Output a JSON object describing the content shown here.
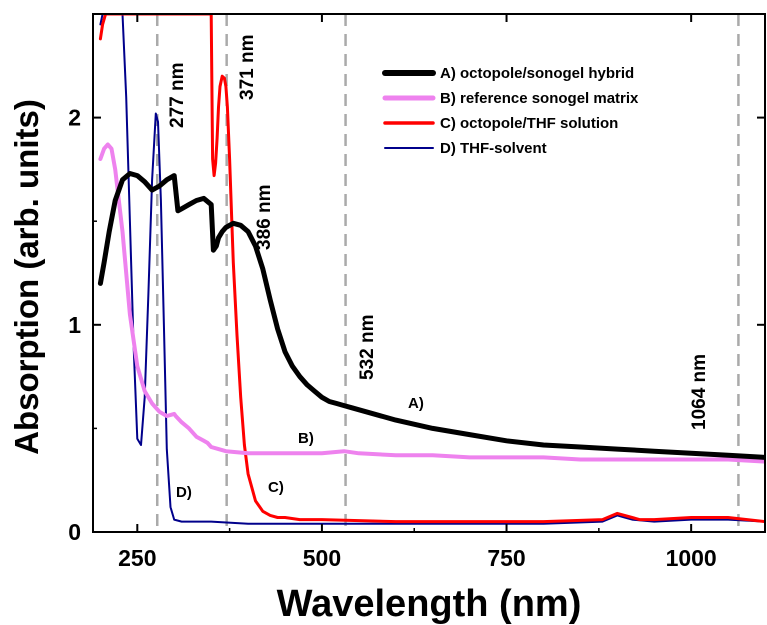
{
  "chart_data": {
    "type": "line",
    "title": "",
    "xlabel": "Wavelength (nm)",
    "ylabel": "Absorption (arb. units)",
    "xlim": [
      190,
      1100
    ],
    "ylim": [
      0,
      2.5
    ],
    "xticks": [
      250,
      500,
      750,
      1000
    ],
    "yticks": [
      0,
      1,
      2
    ],
    "xtick_labels": [
      "250",
      "500",
      "750",
      "1000"
    ],
    "ytick_labels": [
      "0",
      "1",
      "2"
    ],
    "grid": false,
    "legend_position": "top-right",
    "series": [
      {
        "name": "A) octopole/sonogel hybrid",
        "label": "A)",
        "color": "#000000",
        "x": [
          200,
          205,
          212,
          220,
          230,
          240,
          250,
          260,
          270,
          280,
          290,
          300,
          305,
          310,
          320,
          330,
          340,
          350,
          353,
          357,
          360,
          365,
          370,
          375,
          380,
          390,
          400,
          410,
          420,
          430,
          440,
          450,
          460,
          470,
          480,
          490,
          500,
          510,
          520,
          530,
          540,
          560,
          600,
          650,
          700,
          750,
          800,
          850,
          900,
          950,
          1000,
          1050,
          1100
        ],
        "y": [
          1.2,
          1.3,
          1.45,
          1.6,
          1.7,
          1.73,
          1.72,
          1.69,
          1.65,
          1.67,
          1.7,
          1.72,
          1.55,
          1.56,
          1.58,
          1.6,
          1.61,
          1.58,
          1.36,
          1.38,
          1.42,
          1.45,
          1.47,
          1.48,
          1.49,
          1.48,
          1.45,
          1.38,
          1.27,
          1.12,
          0.98,
          0.87,
          0.8,
          0.75,
          0.71,
          0.68,
          0.65,
          0.63,
          0.62,
          0.61,
          0.6,
          0.58,
          0.54,
          0.5,
          0.47,
          0.44,
          0.42,
          0.41,
          0.4,
          0.39,
          0.38,
          0.37,
          0.36
        ]
      },
      {
        "name": "B) reference sonogel matrix",
        "label": "B)",
        "color": "#ee82ee",
        "x": [
          200,
          205,
          210,
          215,
          220,
          230,
          240,
          250,
          260,
          270,
          280,
          290,
          300,
          302,
          310,
          320,
          330,
          340,
          345,
          350,
          360,
          370,
          400,
          450,
          500,
          530,
          550,
          600,
          650,
          700,
          750,
          800,
          850,
          900,
          950,
          1000,
          1050,
          1100
        ],
        "y": [
          1.8,
          1.85,
          1.87,
          1.85,
          1.75,
          1.45,
          1.05,
          0.8,
          0.68,
          0.62,
          0.58,
          0.56,
          0.57,
          0.56,
          0.53,
          0.5,
          0.46,
          0.44,
          0.43,
          0.41,
          0.4,
          0.39,
          0.38,
          0.38,
          0.38,
          0.39,
          0.38,
          0.37,
          0.37,
          0.36,
          0.36,
          0.36,
          0.35,
          0.35,
          0.35,
          0.35,
          0.35,
          0.34
        ]
      },
      {
        "name": "C) octopole/THF solution",
        "label": "C)",
        "color": "#ff0000",
        "x": [
          200,
          203,
          207,
          350,
          352,
          354,
          356,
          358,
          360,
          362,
          365,
          368,
          370,
          372,
          375,
          378,
          380,
          385,
          390,
          395,
          400,
          410,
          420,
          430,
          440,
          450,
          470,
          500,
          600,
          700,
          800,
          880,
          900,
          910,
          920,
          930,
          950,
          1000,
          1050,
          1100
        ],
        "y": [
          2.38,
          2.45,
          2.5,
          2.5,
          1.8,
          1.72,
          1.78,
          1.9,
          2.05,
          2.15,
          2.2,
          2.19,
          2.15,
          2.05,
          1.8,
          1.5,
          1.3,
          0.95,
          0.65,
          0.42,
          0.28,
          0.15,
          0.1,
          0.08,
          0.07,
          0.07,
          0.06,
          0.06,
          0.05,
          0.05,
          0.05,
          0.06,
          0.09,
          0.08,
          0.07,
          0.06,
          0.06,
          0.07,
          0.07,
          0.05
        ]
      },
      {
        "name": "D) THF-solvent",
        "label": "D)",
        "color": "#00008b",
        "x": [
          200,
          203,
          210,
          230,
          235,
          240,
          245,
          250,
          255,
          260,
          265,
          270,
          275,
          278,
          282,
          286,
          290,
          295,
          300,
          310,
          350,
          400,
          500,
          600,
          700,
          800,
          880,
          900,
          910,
          920,
          950,
          1000,
          1050,
          1100
        ],
        "y": [
          2.45,
          2.5,
          2.5,
          2.5,
          2.1,
          1.5,
          0.9,
          0.45,
          0.42,
          0.65,
          1.15,
          1.7,
          2.02,
          1.98,
          1.6,
          1.0,
          0.4,
          0.12,
          0.06,
          0.05,
          0.05,
          0.04,
          0.04,
          0.04,
          0.04,
          0.04,
          0.05,
          0.08,
          0.07,
          0.06,
          0.05,
          0.06,
          0.06,
          0.05
        ]
      }
    ],
    "reference_lines": [
      {
        "x": 277,
        "label": "277 nm"
      },
      {
        "x": 371,
        "label": "371 nm"
      },
      {
        "x": 532,
        "label": "532 nm"
      },
      {
        "x": 1064,
        "label": "1064 nm"
      }
    ],
    "annotations": [
      {
        "text": "386 nm",
        "x": 386,
        "y": 1.49
      }
    ]
  }
}
